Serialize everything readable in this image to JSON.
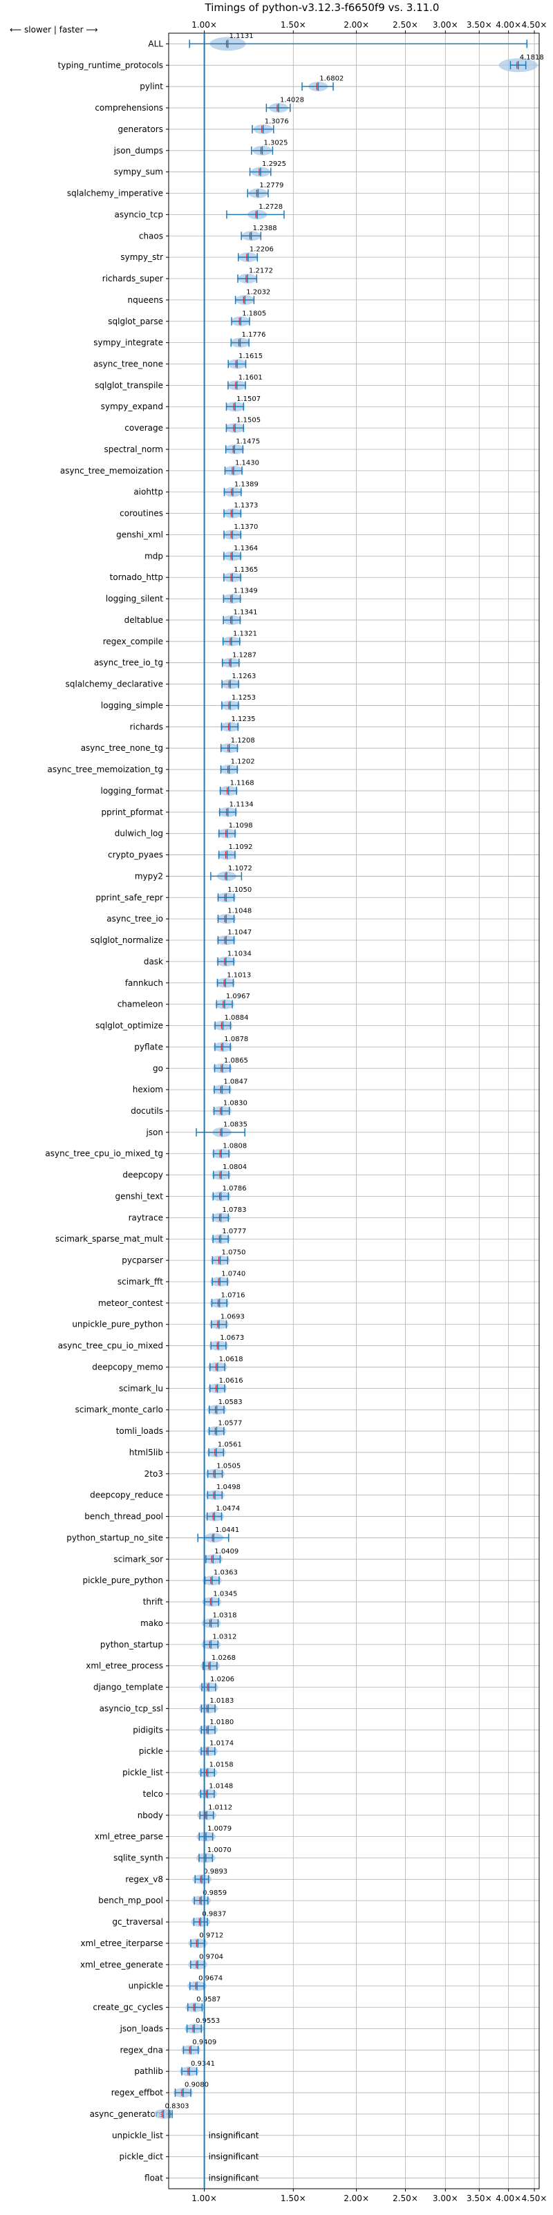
{
  "chart_data": {
    "type": "violin",
    "title": "Timings of python-v3.12.3-f6650f9 vs. 3.11.0",
    "direction_label": "⟵ slower | faster ⟶",
    "x_scale": "log",
    "xlim": [
      0.85,
      4.6
    ],
    "x_ticks": [
      1.0,
      1.5,
      2.0,
      2.5,
      3.0,
      3.5,
      4.0,
      4.5
    ],
    "x_tick_labels": [
      "1.00×",
      "1.50×",
      "2.00×",
      "2.50×",
      "3.00×",
      "3.50×",
      "4.00×",
      "4.50×"
    ],
    "grid": true,
    "reference_line": 1.0,
    "benchmarks": [
      {
        "name": "ALL",
        "mean_label": "1.1131",
        "mean": 1.1131
      },
      {
        "name": "typing_runtime_protocols",
        "mean_label": "4.1818",
        "mean": 4.1818
      },
      {
        "name": "pylint",
        "mean_label": "1.6802",
        "mean": 1.6802
      },
      {
        "name": "comprehensions",
        "mean_label": "1.4028",
        "mean": 1.4028
      },
      {
        "name": "generators",
        "mean_label": "1.3076",
        "mean": 1.3076
      },
      {
        "name": "json_dumps",
        "mean_label": "1.3025",
        "mean": 1.3025
      },
      {
        "name": "sympy_sum",
        "mean_label": "1.2925",
        "mean": 1.2925
      },
      {
        "name": "sqlalchemy_imperative",
        "mean_label": "1.2779",
        "mean": 1.2779
      },
      {
        "name": "asyncio_tcp",
        "mean_label": "1.2728",
        "mean": 1.2728
      },
      {
        "name": "chaos",
        "mean_label": "1.2388",
        "mean": 1.2388
      },
      {
        "name": "sympy_str",
        "mean_label": "1.2206",
        "mean": 1.2206
      },
      {
        "name": "richards_super",
        "mean_label": "1.2172",
        "mean": 1.2172
      },
      {
        "name": "nqueens",
        "mean_label": "1.2032",
        "mean": 1.2032
      },
      {
        "name": "sqlglot_parse",
        "mean_label": "1.1805",
        "mean": 1.1805
      },
      {
        "name": "sympy_integrate",
        "mean_label": "1.1776",
        "mean": 1.1776
      },
      {
        "name": "async_tree_none",
        "mean_label": "1.1615",
        "mean": 1.1615
      },
      {
        "name": "sqlglot_transpile",
        "mean_label": "1.1601",
        "mean": 1.1601
      },
      {
        "name": "sympy_expand",
        "mean_label": "1.1507",
        "mean": 1.1507
      },
      {
        "name": "coverage",
        "mean_label": "1.1505",
        "mean": 1.1505
      },
      {
        "name": "spectral_norm",
        "mean_label": "1.1475",
        "mean": 1.1475
      },
      {
        "name": "async_tree_memoization",
        "mean_label": "1.1430",
        "mean": 1.143
      },
      {
        "name": "aiohttp",
        "mean_label": "1.1389",
        "mean": 1.1389
      },
      {
        "name": "coroutines",
        "mean_label": "1.1373",
        "mean": 1.1373
      },
      {
        "name": "genshi_xml",
        "mean_label": "1.1370",
        "mean": 1.137
      },
      {
        "name": "mdp",
        "mean_label": "1.1364",
        "mean": 1.1364
      },
      {
        "name": "tornado_http",
        "mean_label": "1.1365",
        "mean": 1.1365
      },
      {
        "name": "logging_silent",
        "mean_label": "1.1349",
        "mean": 1.1349
      },
      {
        "name": "deltablue",
        "mean_label": "1.1341",
        "mean": 1.1341
      },
      {
        "name": "regex_compile",
        "mean_label": "1.1321",
        "mean": 1.1321
      },
      {
        "name": "async_tree_io_tg",
        "mean_label": "1.1287",
        "mean": 1.1287
      },
      {
        "name": "sqlalchemy_declarative",
        "mean_label": "1.1263",
        "mean": 1.1263
      },
      {
        "name": "logging_simple",
        "mean_label": "1.1253",
        "mean": 1.1253
      },
      {
        "name": "richards",
        "mean_label": "1.1235",
        "mean": 1.1235
      },
      {
        "name": "async_tree_none_tg",
        "mean_label": "1.1208",
        "mean": 1.1208
      },
      {
        "name": "async_tree_memoization_tg",
        "mean_label": "1.1202",
        "mean": 1.1202
      },
      {
        "name": "logging_format",
        "mean_label": "1.1168",
        "mean": 1.1168
      },
      {
        "name": "pprint_pformat",
        "mean_label": "1.1134",
        "mean": 1.1134
      },
      {
        "name": "dulwich_log",
        "mean_label": "1.1098",
        "mean": 1.1098
      },
      {
        "name": "crypto_pyaes",
        "mean_label": "1.1092",
        "mean": 1.1092
      },
      {
        "name": "mypy2",
        "mean_label": "1.1072",
        "mean": 1.1072
      },
      {
        "name": "pprint_safe_repr",
        "mean_label": "1.1050",
        "mean": 1.105
      },
      {
        "name": "async_tree_io",
        "mean_label": "1.1048",
        "mean": 1.1048
      },
      {
        "name": "sqlglot_normalize",
        "mean_label": "1.1047",
        "mean": 1.1047
      },
      {
        "name": "dask",
        "mean_label": "1.1034",
        "mean": 1.1034
      },
      {
        "name": "fannkuch",
        "mean_label": "1.1013",
        "mean": 1.1013
      },
      {
        "name": "chameleon",
        "mean_label": "1.0967",
        "mean": 1.0967
      },
      {
        "name": "sqlglot_optimize",
        "mean_label": "1.0884",
        "mean": 1.0884
      },
      {
        "name": "pyflate",
        "mean_label": "1.0878",
        "mean": 1.0878
      },
      {
        "name": "go",
        "mean_label": "1.0865",
        "mean": 1.0865
      },
      {
        "name": "hexiom",
        "mean_label": "1.0847",
        "mean": 1.0847
      },
      {
        "name": "docutils",
        "mean_label": "1.0830",
        "mean": 1.083
      },
      {
        "name": "json",
        "mean_label": "1.0835",
        "mean": 1.0835
      },
      {
        "name": "async_tree_cpu_io_mixed_tg",
        "mean_label": "1.0808",
        "mean": 1.0808
      },
      {
        "name": "deepcopy",
        "mean_label": "1.0804",
        "mean": 1.0804
      },
      {
        "name": "genshi_text",
        "mean_label": "1.0786",
        "mean": 1.0786
      },
      {
        "name": "raytrace",
        "mean_label": "1.0783",
        "mean": 1.0783
      },
      {
        "name": "scimark_sparse_mat_mult",
        "mean_label": "1.0777",
        "mean": 1.0777
      },
      {
        "name": "pycparser",
        "mean_label": "1.0750",
        "mean": 1.075
      },
      {
        "name": "scimark_fft",
        "mean_label": "1.0740",
        "mean": 1.074
      },
      {
        "name": "meteor_contest",
        "mean_label": "1.0716",
        "mean": 1.0716
      },
      {
        "name": "unpickle_pure_python",
        "mean_label": "1.0693",
        "mean": 1.0693
      },
      {
        "name": "async_tree_cpu_io_mixed",
        "mean_label": "1.0673",
        "mean": 1.0673
      },
      {
        "name": "deepcopy_memo",
        "mean_label": "1.0618",
        "mean": 1.0618
      },
      {
        "name": "scimark_lu",
        "mean_label": "1.0616",
        "mean": 1.0616
      },
      {
        "name": "scimark_monte_carlo",
        "mean_label": "1.0583",
        "mean": 1.0583
      },
      {
        "name": "tomli_loads",
        "mean_label": "1.0577",
        "mean": 1.0577
      },
      {
        "name": "html5lib",
        "mean_label": "1.0561",
        "mean": 1.0561
      },
      {
        "name": "2to3",
        "mean_label": "1.0505",
        "mean": 1.0505
      },
      {
        "name": "deepcopy_reduce",
        "mean_label": "1.0498",
        "mean": 1.0498
      },
      {
        "name": "bench_thread_pool",
        "mean_label": "1.0474",
        "mean": 1.0474
      },
      {
        "name": "python_startup_no_site",
        "mean_label": "1.0441",
        "mean": 1.0441
      },
      {
        "name": "scimark_sor",
        "mean_label": "1.0409",
        "mean": 1.0409
      },
      {
        "name": "pickle_pure_python",
        "mean_label": "1.0363",
        "mean": 1.0363
      },
      {
        "name": "thrift",
        "mean_label": "1.0345",
        "mean": 1.0345
      },
      {
        "name": "mako",
        "mean_label": "1.0318",
        "mean": 1.0318
      },
      {
        "name": "python_startup",
        "mean_label": "1.0312",
        "mean": 1.0312
      },
      {
        "name": "xml_etree_process",
        "mean_label": "1.0268",
        "mean": 1.0268
      },
      {
        "name": "django_template",
        "mean_label": "1.0206",
        "mean": 1.0206
      },
      {
        "name": "asyncio_tcp_ssl",
        "mean_label": "1.0183",
        "mean": 1.0183
      },
      {
        "name": "pidigits",
        "mean_label": "1.0180",
        "mean": 1.018
      },
      {
        "name": "pickle",
        "mean_label": "1.0174",
        "mean": 1.0174
      },
      {
        "name": "pickle_list",
        "mean_label": "1.0158",
        "mean": 1.0158
      },
      {
        "name": "telco",
        "mean_label": "1.0148",
        "mean": 1.0148
      },
      {
        "name": "nbody",
        "mean_label": "1.0112",
        "mean": 1.0112
      },
      {
        "name": "xml_etree_parse",
        "mean_label": "1.0079",
        "mean": 1.0079
      },
      {
        "name": "sqlite_synth",
        "mean_label": "1.0070",
        "mean": 1.007
      },
      {
        "name": "regex_v8",
        "mean_label": "0.9893",
        "mean": 0.9893
      },
      {
        "name": "bench_mp_pool",
        "mean_label": "0.9859",
        "mean": 0.9859
      },
      {
        "name": "gc_traversal",
        "mean_label": "0.9837",
        "mean": 0.9837
      },
      {
        "name": "xml_etree_iterparse",
        "mean_label": "0.9712",
        "mean": 0.9712
      },
      {
        "name": "xml_etree_generate",
        "mean_label": "0.9704",
        "mean": 0.9704
      },
      {
        "name": "unpickle",
        "mean_label": "0.9674",
        "mean": 0.9674
      },
      {
        "name": "create_gc_cycles",
        "mean_label": "0.9587",
        "mean": 0.9587
      },
      {
        "name": "json_loads",
        "mean_label": "0.9553",
        "mean": 0.9553
      },
      {
        "name": "regex_dna",
        "mean_label": "0.9409",
        "mean": 0.9409
      },
      {
        "name": "pathlib",
        "mean_label": "0.9341",
        "mean": 0.9341
      },
      {
        "name": "regex_effbot",
        "mean_label": "0.9080",
        "mean": 0.908
      },
      {
        "name": "async_generators",
        "mean_label": "0.8303",
        "mean": 0.8303
      },
      {
        "name": "unpickle_list",
        "mean_label": "insignificant",
        "mean": null
      },
      {
        "name": "pickle_dict",
        "mean_label": "insignificant",
        "mean": null
      },
      {
        "name": "float",
        "mean_label": "insignificant",
        "mean": null
      }
    ],
    "colors": {
      "violin_fill": "#a9c8e6",
      "whisker": "#1f77b4",
      "median": "#d62728",
      "grid": "#b0b0b0",
      "reference_line": "#1f77b4"
    }
  }
}
